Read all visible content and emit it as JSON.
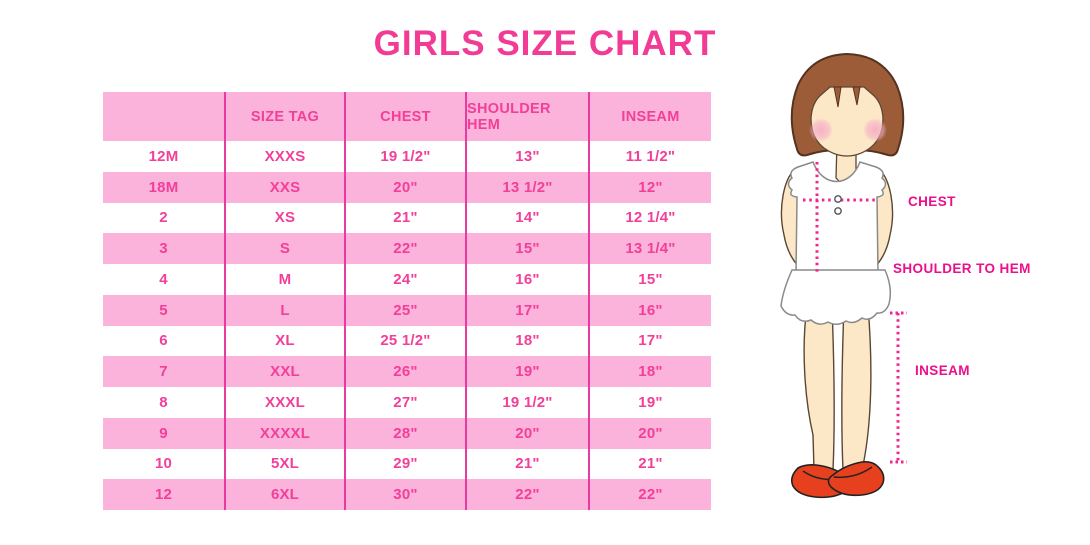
{
  "title": "GIRLS SIZE CHART",
  "colors": {
    "pink_bg": "#FBB2DB",
    "divider": "#E93A9F",
    "cell_text": "#F23F99",
    "title_text": "#F23B95",
    "label_text": "#EB0F8C",
    "dotted": "#F0268F",
    "hair_brown": "#9D5C38",
    "skin": "#FCE8C6",
    "blush": "#F6AEC6",
    "shoe_red": "#E6401F"
  },
  "chart_data": {
    "type": "table",
    "title": "GIRLS SIZE CHART",
    "columns": [
      "",
      "SIZE TAG",
      "CHEST",
      "SHOULDER HEM",
      "INSEAM"
    ],
    "rows": [
      [
        "12M",
        "XXXS",
        "19 1/2\"",
        "13\"",
        "11 1/2\""
      ],
      [
        "18M",
        "XXS",
        "20\"",
        "13 1/2\"",
        "12\""
      ],
      [
        "2",
        "XS",
        "21\"",
        "14\"",
        "12 1/4\""
      ],
      [
        "3",
        "S",
        "22\"",
        "15\"",
        "13 1/4\""
      ],
      [
        "4",
        "M",
        "24\"",
        "16\"",
        "15\""
      ],
      [
        "5",
        "L",
        "25\"",
        "17\"",
        "16\""
      ],
      [
        "6",
        "XL",
        "25 1/2\"",
        "18\"",
        "17\""
      ],
      [
        "7",
        "XXL",
        "26\"",
        "19\"",
        "18\""
      ],
      [
        "8",
        "XXXL",
        "27\"",
        "19 1/2\"",
        "19\""
      ],
      [
        "9",
        "XXXXL",
        "28\"",
        "20\"",
        "20\""
      ],
      [
        "10",
        "5XL",
        "29\"",
        "21\"",
        "21\""
      ],
      [
        "12",
        "6XL",
        "30\"",
        "22\"",
        "22\""
      ]
    ]
  },
  "diagram": {
    "labels": {
      "chest": "CHEST",
      "shoulder_to_hem": "SHOULDER TO HEM",
      "inseam": "INSEAM"
    }
  }
}
